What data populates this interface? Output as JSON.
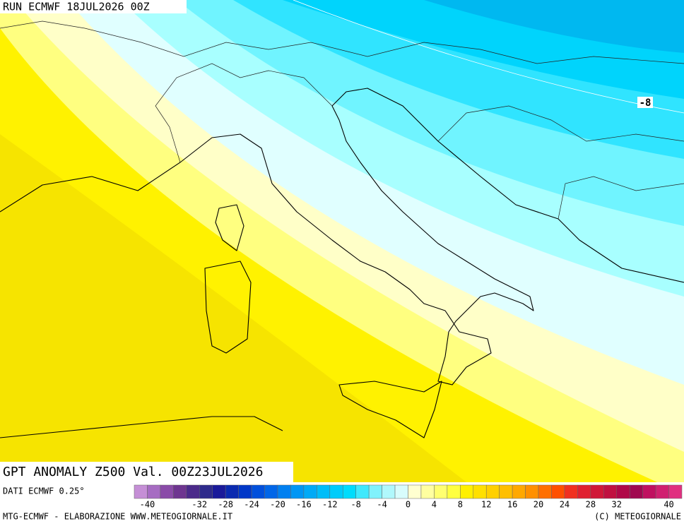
{
  "header": {
    "run": "RUN ECMWF 18JUL2026 00Z"
  },
  "map": {
    "contour_label": "-8"
  },
  "footer": {
    "title": "GPT ANOMALY Z500 Val. 00Z23JUL2026",
    "source": "DATI ECMWF 0.25°",
    "credit_left": "MTG-ECMWF - ELABORAZIONE WWW.METEOGIORNALE.IT",
    "credit_right": "(C) METEOGIORNALE"
  },
  "colorbar": {
    "range": [
      -42,
      42
    ],
    "ticks": [
      -40,
      -32,
      -28,
      -24,
      -20,
      -16,
      -12,
      -8,
      -4,
      0,
      4,
      8,
      12,
      16,
      20,
      24,
      28,
      32,
      40
    ],
    "colors": [
      "#c58fd6",
      "#a66cc2",
      "#8a4ba8",
      "#6e3590",
      "#4b2a8a",
      "#2e2a8c",
      "#1a1a9a",
      "#0a2ab0",
      "#0038c8",
      "#0050dc",
      "#0066e8",
      "#0080f0",
      "#0096f4",
      "#00aaf6",
      "#00bdf8",
      "#00ccfa",
      "#00dcfc",
      "#40e8fc",
      "#80f2fc",
      "#b0f8fc",
      "#d8fcfc",
      "#ffffd0",
      "#ffffa0",
      "#ffff70",
      "#ffff40",
      "#fff000",
      "#ffe000",
      "#ffd000",
      "#ffbf00",
      "#ffa800",
      "#ff9000",
      "#ff7000",
      "#ff5000",
      "#f03020",
      "#e02030",
      "#d01838",
      "#c01040",
      "#b00848",
      "#a00850",
      "#c01060",
      "#d02070",
      "#e03080"
    ]
  }
}
